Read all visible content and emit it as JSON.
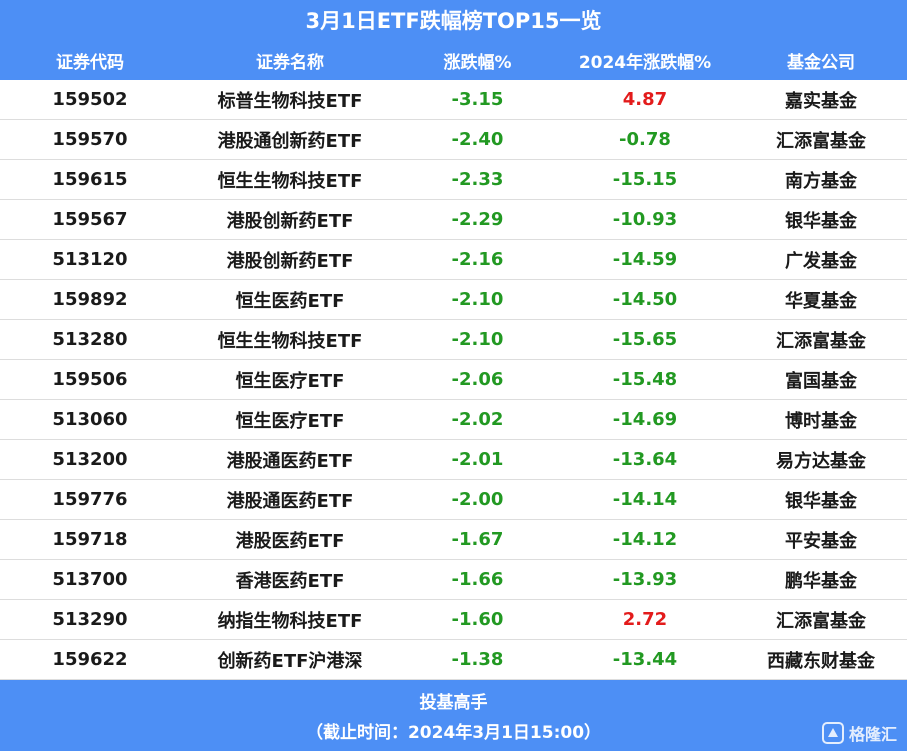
{
  "title": "3月1日ETF跌幅榜TOP15一览",
  "columns": [
    "证券代码",
    "证券名称",
    "涨跌幅%",
    "2024年涨跌幅%",
    "基金公司"
  ],
  "colors": {
    "header_bg": "#4d8ff5",
    "positive": "#e31b1b",
    "negative": "#229922",
    "text": "#1a1a1a"
  },
  "rows": [
    {
      "code": "159502",
      "name": "标普生物科技ETF",
      "change": "-3.15",
      "ytd": "4.87",
      "company": "嘉实基金"
    },
    {
      "code": "159570",
      "name": "港股通创新药ETF",
      "change": "-2.40",
      "ytd": "-0.78",
      "company": "汇添富基金"
    },
    {
      "code": "159615",
      "name": "恒生生物科技ETF",
      "change": "-2.33",
      "ytd": "-15.15",
      "company": "南方基金"
    },
    {
      "code": "159567",
      "name": "港股创新药ETF",
      "change": "-2.29",
      "ytd": "-10.93",
      "company": "银华基金"
    },
    {
      "code": "513120",
      "name": "港股创新药ETF",
      "change": "-2.16",
      "ytd": "-14.59",
      "company": "广发基金"
    },
    {
      "code": "159892",
      "name": "恒生医药ETF",
      "change": "-2.10",
      "ytd": "-14.50",
      "company": "华夏基金"
    },
    {
      "code": "513280",
      "name": "恒生生物科技ETF",
      "change": "-2.10",
      "ytd": "-15.65",
      "company": "汇添富基金"
    },
    {
      "code": "159506",
      "name": "恒生医疗ETF",
      "change": "-2.06",
      "ytd": "-15.48",
      "company": "富国基金"
    },
    {
      "code": "513060",
      "name": "恒生医疗ETF",
      "change": "-2.02",
      "ytd": "-14.69",
      "company": "博时基金"
    },
    {
      "code": "513200",
      "name": "港股通医药ETF",
      "change": "-2.01",
      "ytd": "-13.64",
      "company": "易方达基金"
    },
    {
      "code": "159776",
      "name": "港股通医药ETF",
      "change": "-2.00",
      "ytd": "-14.14",
      "company": "银华基金"
    },
    {
      "code": "159718",
      "name": "港股医药ETF",
      "change": "-1.67",
      "ytd": "-14.12",
      "company": "平安基金"
    },
    {
      "code": "513700",
      "name": "香港医药ETF",
      "change": "-1.66",
      "ytd": "-13.93",
      "company": "鹏华基金"
    },
    {
      "code": "513290",
      "name": "纳指生物科技ETF",
      "change": "-1.60",
      "ytd": "2.72",
      "company": "汇添富基金"
    },
    {
      "code": "159622",
      "name": "创新药ETF沪港深",
      "change": "-1.38",
      "ytd": "-13.44",
      "company": "西藏东财基金"
    }
  ],
  "footer": {
    "source": "投基高手",
    "timestamp": "（截止时间：2024年3月1日15:00）",
    "watermark": "格隆汇"
  }
}
